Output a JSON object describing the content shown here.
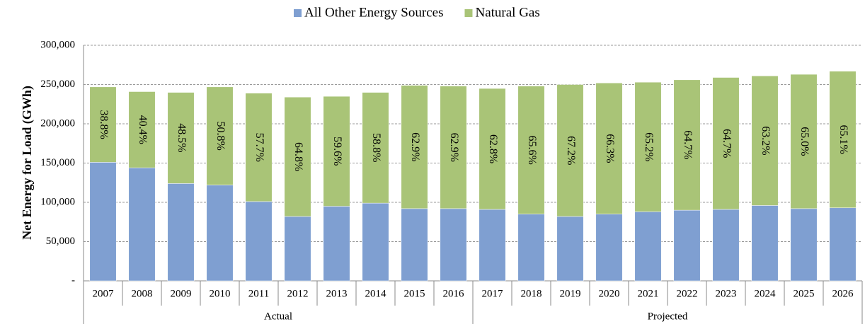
{
  "chart_data": {
    "type": "stacked_bar",
    "y_label": "Net Energy for Load (GWh)",
    "categories": [
      "2007",
      "2008",
      "2009",
      "2010",
      "2011",
      "2012",
      "2013",
      "2014",
      "2015",
      "2016",
      "2017",
      "2018",
      "2019",
      "2020",
      "2021",
      "2022",
      "2023",
      "2024",
      "2025",
      "2026"
    ],
    "groups": [
      {
        "label": "Actual",
        "count": 10
      },
      {
        "label": "Projected",
        "count": 10
      }
    ],
    "series": [
      {
        "name": "All Other Energy Sources",
        "color": "#7f9fd1",
        "values": [
          151000,
          144000,
          124000,
          122000,
          101000,
          82000,
          95000,
          99000,
          92000,
          92000,
          91000,
          85000,
          82000,
          85000,
          88000,
          90000,
          91000,
          96000,
          92000,
          93000
        ]
      },
      {
        "name": "Natural Gas",
        "color": "#a9c477",
        "values": [
          96000,
          97000,
          116000,
          125000,
          138000,
          152000,
          140000,
          141000,
          157000,
          156000,
          154000,
          163000,
          168000,
          167000,
          165000,
          166000,
          168000,
          165000,
          171000,
          174000
        ]
      }
    ],
    "annotations": [
      "38.8%",
      "40.4%",
      "48.5%",
      "50.8%",
      "57.7%",
      "64.8%",
      "59.6%",
      "58.8%",
      "62.9%",
      "62.9%",
      "62.8%",
      "65.6%",
      "67.2%",
      "66.3%",
      "65.2%",
      "64.7%",
      "64.7%",
      "63.2%",
      "65.0%",
      "65.1%"
    ],
    "ylim": [
      0,
      300000
    ],
    "yticks": [
      {
        "value": 0,
        "label": "-"
      },
      {
        "value": 50000,
        "label": "50,000"
      },
      {
        "value": 100000,
        "label": "100,000"
      },
      {
        "value": 150000,
        "label": "150,000"
      },
      {
        "value": 200000,
        "label": "200,000"
      },
      {
        "value": 250000,
        "label": "250,000"
      },
      {
        "value": 300000,
        "label": "300,000"
      }
    ],
    "grid": true,
    "legend": "top"
  }
}
